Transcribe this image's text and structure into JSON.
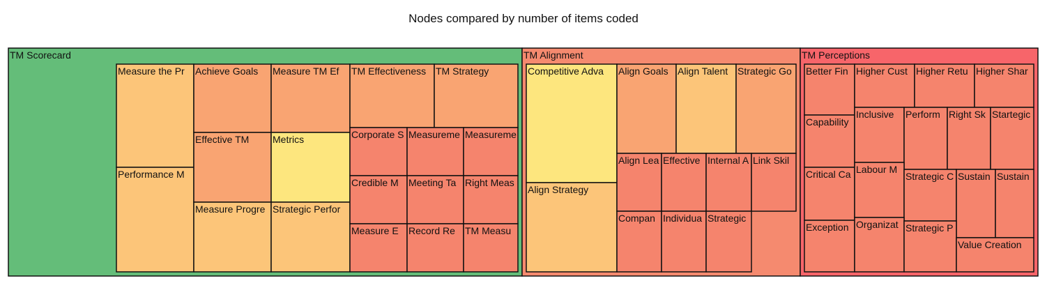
{
  "chart_data": {
    "type": "treemap",
    "title": "Nodes compared by number of items coded",
    "colors": {
      "TM Scorecard": "#64bd79",
      "TM Alignment": "#f58a6f",
      "TM Perceptions": "#f7656a",
      "Measure the Pr": "#fcc579",
      "Performance M": "#fcc579",
      "Achieve Goals": "#f9a472",
      "Measure TM Ef": "#f9a472",
      "Effective TM": "#f9a472",
      "Metrics": "#fde67e",
      "Measure Progre": "#fcc579",
      "Strategic Perfor": "#fcc579",
      "TM Effectiveness": "#f9a472",
      "TM Strategy": "#f9a472",
      "Corporate S": "#f5846d",
      "Measureme 1": "#f5846d",
      "Measureme 2": "#f5846d",
      "Credible M": "#f5846d",
      "Meeting Ta": "#f5846d",
      "Right Meas": "#f5846d",
      "Measure E": "#f5846d",
      "Record Re": "#f5846d",
      "TM Measu": "#f5846d",
      "Competitive Adva": "#fde67e",
      "Align Strategy": "#fcc579",
      "Align Goals": "#f9a472",
      "Align Talent": "#fcc579",
      "Strategic Go": "#f9a472",
      "Align Lea": "#f5846d",
      "Effective": "#f5846d",
      "Internal A": "#f5846d",
      "Link Skil": "#f5846d",
      "Compan": "#f5846d",
      "Individua": "#f5846d",
      "Strategic A": "#f5846d",
      "Better Fin": "#f5846d",
      "Higher Cust": "#f5846d",
      "Higher Retu": "#f5846d",
      "Higher Shar": "#f5846d",
      "Capability": "#f5846d",
      "Inclusive": "#f5846d",
      "Perform": "#f5846d",
      "Right Sk": "#f5846d",
      "Startegic": "#f5846d",
      "Critical Ca": "#f5846d",
      "Labour M": "#f5846d",
      "Strategic C": "#f5846d",
      "Sustain 1": "#f5846d",
      "Sustain 2": "#f5846d",
      "Exception": "#f5846d",
      "Organizat": "#f5846d",
      "Strategic P": "#f5846d",
      "Value Creation": "#f5846d"
    },
    "groups": [
      {
        "name": "TM Scorecard",
        "children": [
          {
            "label": "Measure the Pr",
            "value": 5
          },
          {
            "label": "Performance M",
            "value": 5
          },
          {
            "label": "Achieve Goals",
            "value": 4
          },
          {
            "label": "Measure TM Ef",
            "value": 4
          },
          {
            "label": "Effective TM",
            "value": 4
          },
          {
            "label": "Metrics",
            "value": 4
          },
          {
            "label": "Measure Progre",
            "value": 4
          },
          {
            "label": "Strategic Perfor",
            "value": 4
          },
          {
            "label": "TM Effectiveness",
            "value": 3
          },
          {
            "label": "TM Strategy",
            "value": 3
          },
          {
            "label": "Corporate S",
            "value": 2
          },
          {
            "label": "Measureme",
            "value": 2
          },
          {
            "label": "Measureme",
            "value": 2
          },
          {
            "label": "Credible M",
            "value": 2
          },
          {
            "label": "Meeting Ta",
            "value": 2
          },
          {
            "label": "Right Meas",
            "value": 2
          },
          {
            "label": "Measure E",
            "value": 2
          },
          {
            "label": "Record Re",
            "value": 2
          },
          {
            "label": "TM Measu",
            "value": 2
          }
        ]
      },
      {
        "name": "TM Alignment",
        "children": [
          {
            "label": "Competitive Adva",
            "value": 6
          },
          {
            "label": "Align Strategy",
            "value": 5
          },
          {
            "label": "Align Goals",
            "value": 4
          },
          {
            "label": "Align Talent",
            "value": 4
          },
          {
            "label": "Strategic Go",
            "value": 4
          },
          {
            "label": "Align Lea",
            "value": 2
          },
          {
            "label": "Effective",
            "value": 2
          },
          {
            "label": "Internal A",
            "value": 2
          },
          {
            "label": "Link Skil",
            "value": 2
          },
          {
            "label": "Compan",
            "value": 2
          },
          {
            "label": "Individua",
            "value": 2
          },
          {
            "label": "Strategic",
            "value": 2
          }
        ]
      },
      {
        "name": "TM Perceptions",
        "children": [
          {
            "label": "Better Fin",
            "value": 2
          },
          {
            "label": "Higher Cust",
            "value": 2
          },
          {
            "label": "Higher Retu",
            "value": 2
          },
          {
            "label": "Higher Shar",
            "value": 2
          },
          {
            "label": "Capability",
            "value": 2
          },
          {
            "label": "Inclusive",
            "value": 2
          },
          {
            "label": "Perform",
            "value": 2
          },
          {
            "label": "Right Sk",
            "value": 2
          },
          {
            "label": "Startegic",
            "value": 2
          },
          {
            "label": "Critical Ca",
            "value": 2
          },
          {
            "label": "Labour M",
            "value": 2
          },
          {
            "label": "Strategic C",
            "value": 2
          },
          {
            "label": "Sustain",
            "value": 2
          },
          {
            "label": "Sustain",
            "value": 2
          },
          {
            "label": "Exception",
            "value": 2
          },
          {
            "label": "Organizat",
            "value": 2
          },
          {
            "label": "Strategic P",
            "value": 2
          },
          {
            "label": "Value Creation",
            "value": 2
          }
        ]
      }
    ]
  }
}
